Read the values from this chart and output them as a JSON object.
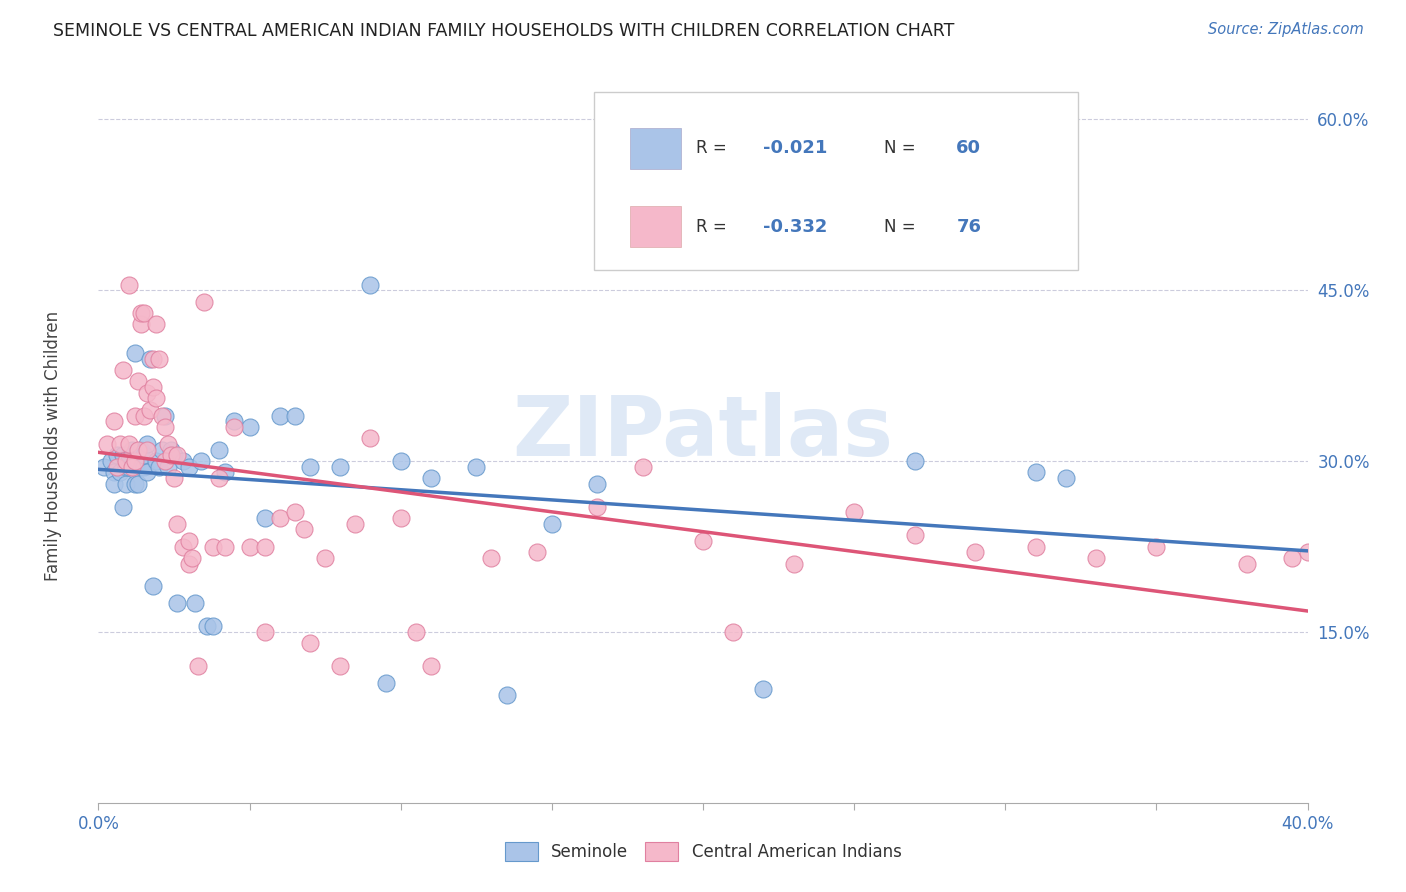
{
  "title": "SEMINOLE VS CENTRAL AMERICAN INDIAN FAMILY HOUSEHOLDS WITH CHILDREN CORRELATION CHART",
  "source": "Source: ZipAtlas.com",
  "ylabel": "Family Households with Children",
  "xlim": [
    0.0,
    0.4
  ],
  "ylim": [
    0.0,
    0.65
  ],
  "yticks": [
    0.15,
    0.3,
    0.45,
    0.6
  ],
  "ytick_labels": [
    "15.0%",
    "30.0%",
    "45.0%",
    "60.0%"
  ],
  "xticks": [
    0.0,
    0.05,
    0.1,
    0.15,
    0.2,
    0.25,
    0.3,
    0.35,
    0.4
  ],
  "seminole_color": "#aac4e8",
  "seminole_edge": "#6699cc",
  "central_color": "#f5b8ca",
  "central_edge": "#e080a0",
  "seminole_line_color": "#4477bb",
  "central_line_color": "#dd5577",
  "legend_r1": "-0.021",
  "legend_n1": "60",
  "legend_r2": "-0.332",
  "legend_n2": "76",
  "legend_label1": "Seminole",
  "legend_label2": "Central American Indians",
  "watermark": "ZIPatlas",
  "title_color": "#222222",
  "source_color": "#4477bb",
  "axis_color": "#4477bb",
  "text_color": "#333333",
  "seminole_x": [
    0.002,
    0.004,
    0.005,
    0.005,
    0.006,
    0.007,
    0.008,
    0.008,
    0.009,
    0.009,
    0.01,
    0.01,
    0.011,
    0.012,
    0.012,
    0.013,
    0.013,
    0.014,
    0.014,
    0.015,
    0.015,
    0.016,
    0.016,
    0.017,
    0.018,
    0.019,
    0.02,
    0.021,
    0.022,
    0.023,
    0.024,
    0.025,
    0.026,
    0.028,
    0.03,
    0.032,
    0.034,
    0.036,
    0.038,
    0.04,
    0.042,
    0.045,
    0.05,
    0.055,
    0.06,
    0.065,
    0.07,
    0.08,
    0.09,
    0.095,
    0.1,
    0.11,
    0.125,
    0.135,
    0.15,
    0.165,
    0.22,
    0.27,
    0.31,
    0.32
  ],
  "seminole_y": [
    0.295,
    0.3,
    0.29,
    0.28,
    0.305,
    0.29,
    0.305,
    0.26,
    0.28,
    0.295,
    0.295,
    0.305,
    0.31,
    0.28,
    0.395,
    0.3,
    0.28,
    0.295,
    0.31,
    0.295,
    0.305,
    0.315,
    0.29,
    0.39,
    0.19,
    0.3,
    0.295,
    0.31,
    0.34,
    0.295,
    0.31,
    0.305,
    0.175,
    0.3,
    0.295,
    0.175,
    0.3,
    0.155,
    0.155,
    0.31,
    0.29,
    0.335,
    0.33,
    0.25,
    0.34,
    0.34,
    0.295,
    0.295,
    0.455,
    0.105,
    0.3,
    0.285,
    0.295,
    0.095,
    0.245,
    0.28,
    0.1,
    0.3,
    0.29,
    0.285
  ],
  "central_x": [
    0.003,
    0.005,
    0.006,
    0.007,
    0.008,
    0.009,
    0.01,
    0.01,
    0.011,
    0.012,
    0.012,
    0.013,
    0.013,
    0.014,
    0.014,
    0.015,
    0.015,
    0.016,
    0.016,
    0.017,
    0.018,
    0.018,
    0.019,
    0.019,
    0.02,
    0.021,
    0.022,
    0.022,
    0.023,
    0.024,
    0.025,
    0.026,
    0.026,
    0.028,
    0.03,
    0.03,
    0.031,
    0.033,
    0.035,
    0.038,
    0.04,
    0.042,
    0.045,
    0.05,
    0.055,
    0.055,
    0.06,
    0.065,
    0.068,
    0.07,
    0.075,
    0.08,
    0.085,
    0.09,
    0.1,
    0.105,
    0.11,
    0.13,
    0.145,
    0.165,
    0.18,
    0.2,
    0.21,
    0.23,
    0.25,
    0.27,
    0.29,
    0.31,
    0.33,
    0.35,
    0.38,
    0.395,
    0.4
  ],
  "central_y": [
    0.315,
    0.335,
    0.295,
    0.315,
    0.38,
    0.3,
    0.455,
    0.315,
    0.295,
    0.3,
    0.34,
    0.31,
    0.37,
    0.42,
    0.43,
    0.34,
    0.43,
    0.31,
    0.36,
    0.345,
    0.365,
    0.39,
    0.355,
    0.42,
    0.39,
    0.34,
    0.33,
    0.3,
    0.315,
    0.305,
    0.285,
    0.245,
    0.305,
    0.225,
    0.23,
    0.21,
    0.215,
    0.12,
    0.44,
    0.225,
    0.285,
    0.225,
    0.33,
    0.225,
    0.225,
    0.15,
    0.25,
    0.255,
    0.24,
    0.14,
    0.215,
    0.12,
    0.245,
    0.32,
    0.25,
    0.15,
    0.12,
    0.215,
    0.22,
    0.26,
    0.295,
    0.23,
    0.15,
    0.21,
    0.255,
    0.235,
    0.22,
    0.225,
    0.215,
    0.225,
    0.21,
    0.215,
    0.22
  ]
}
